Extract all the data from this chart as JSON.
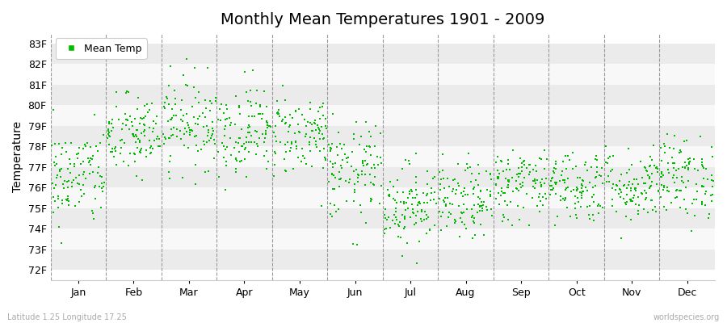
{
  "title": "Monthly Mean Temperatures 1901 - 2009",
  "ylabel": "Temperature",
  "xlabel_labels": [
    "Jan",
    "Feb",
    "Mar",
    "Apr",
    "May",
    "Jun",
    "Jul",
    "Aug",
    "Sep",
    "Oct",
    "Nov",
    "Dec"
  ],
  "ytick_labels": [
    "72F",
    "73F",
    "74F",
    "75F",
    "76F",
    "77F",
    "78F",
    "79F",
    "80F",
    "81F",
    "82F",
    "83F"
  ],
  "ytick_values": [
    72,
    73,
    74,
    75,
    76,
    77,
    78,
    79,
    80,
    81,
    82,
    83
  ],
  "ylim": [
    71.5,
    83.5
  ],
  "dot_color": "#00bb00",
  "bg_color": "#ffffff",
  "plot_bg_color": "#ffffff",
  "band_color_even": "#ebebeb",
  "band_color_odd": "#f8f8f8",
  "dashed_line_color": "#999999",
  "footer_left": "Latitude 1.25 Longitude 17.25",
  "footer_right": "worldspecies.org",
  "legend_label": "Mean Temp",
  "title_fontsize": 14,
  "n_years": 109,
  "seed": 42,
  "monthly_means": [
    76.5,
    78.5,
    79.2,
    78.8,
    78.6,
    76.7,
    75.2,
    75.3,
    76.2,
    76.1,
    76.1,
    76.5
  ],
  "monthly_stds": [
    1.2,
    1.0,
    1.1,
    1.1,
    1.0,
    1.2,
    1.0,
    0.9,
    0.9,
    0.9,
    0.9,
    1.0
  ]
}
